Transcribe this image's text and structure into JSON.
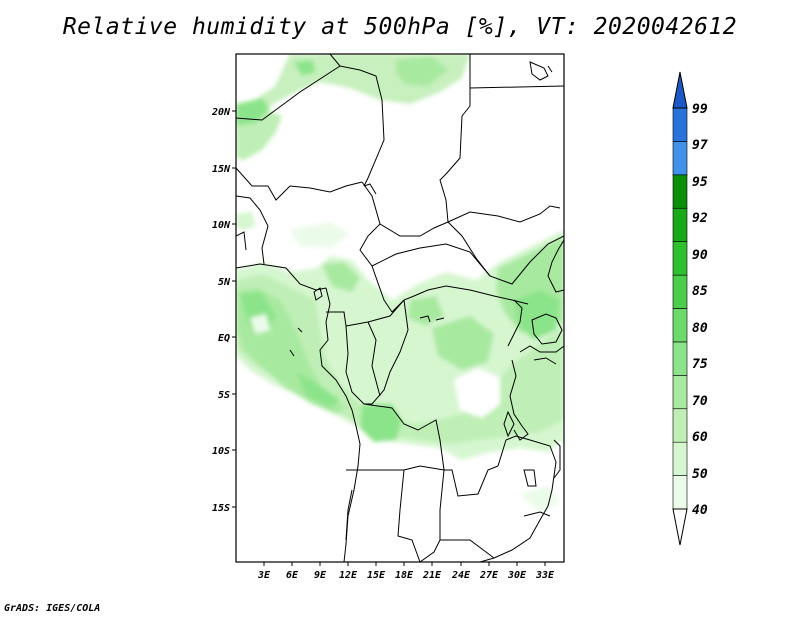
{
  "title": "Relative humidity at 500hPa [%], VT: 2020042612",
  "credit": "GrADS: IGES/COLA",
  "map": {
    "variable": "Relative humidity",
    "level": "500hPa",
    "units": "%",
    "valid_time": "2020042612",
    "lat_labels": [
      "20N",
      "15N",
      "10N",
      "5N",
      "EQ",
      "5S",
      "10S",
      "15S"
    ],
    "lon_labels": [
      "3E",
      "6E",
      "9E",
      "12E",
      "15E",
      "18E",
      "21E",
      "24E",
      "27E",
      "30E",
      "33E"
    ]
  },
  "colorbar": {
    "levels": [
      "40",
      "50",
      "60",
      "70",
      "75",
      "80",
      "85",
      "90",
      "92",
      "95",
      "97",
      "99"
    ],
    "colors": [
      "#ebfbe9",
      "#d6f6d0",
      "#bfefb6",
      "#a8e9a0",
      "#8ce48a",
      "#6cd96a",
      "#4cce4c",
      "#2fbf2f",
      "#18a918",
      "#0b8f0b",
      "#4191ea",
      "#2a72dc",
      "#1d58c7"
    ]
  },
  "colors": {
    "frame": "#000000",
    "land": "#ffffff",
    "boundary": "#000000"
  }
}
